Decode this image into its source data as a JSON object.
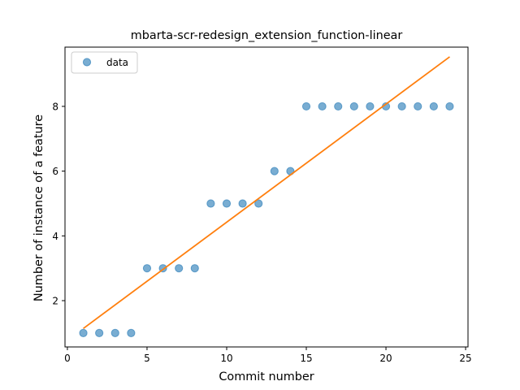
{
  "chart_data": {
    "type": "scatter",
    "title": "mbarta-scr-redesign_extension_function-linear",
    "xlabel": "Commit number",
    "ylabel": "Number of instance of a feature",
    "xlim": [
      -0.15,
      25.15
    ],
    "ylim": [
      0.57,
      9.83
    ],
    "xticks": [
      0,
      5,
      10,
      15,
      20,
      25
    ],
    "yticks": [
      2,
      4,
      6,
      8
    ],
    "xtick_labels": [
      "0",
      "5",
      "10",
      "15",
      "20",
      "25"
    ],
    "ytick_labels": [
      "2",
      "4",
      "6",
      "8"
    ],
    "grid": false,
    "legend_position": "upper left",
    "series": [
      {
        "name": "data",
        "kind": "scatter",
        "color": "#1f77b4",
        "x": [
          1,
          2,
          3,
          4,
          5,
          6,
          7,
          8,
          9,
          10,
          11,
          12,
          13,
          14,
          15,
          16,
          17,
          18,
          19,
          20,
          21,
          22,
          23,
          24
        ],
        "y": [
          1,
          1,
          1,
          1,
          3,
          3,
          3,
          3,
          5,
          5,
          5,
          5,
          6,
          6,
          8,
          8,
          8,
          8,
          8,
          8,
          8,
          8,
          8,
          8
        ]
      },
      {
        "kind": "line",
        "color": "#ff7f0e",
        "x": [
          1,
          24
        ],
        "y": [
          1.14,
          9.53
        ]
      }
    ]
  }
}
